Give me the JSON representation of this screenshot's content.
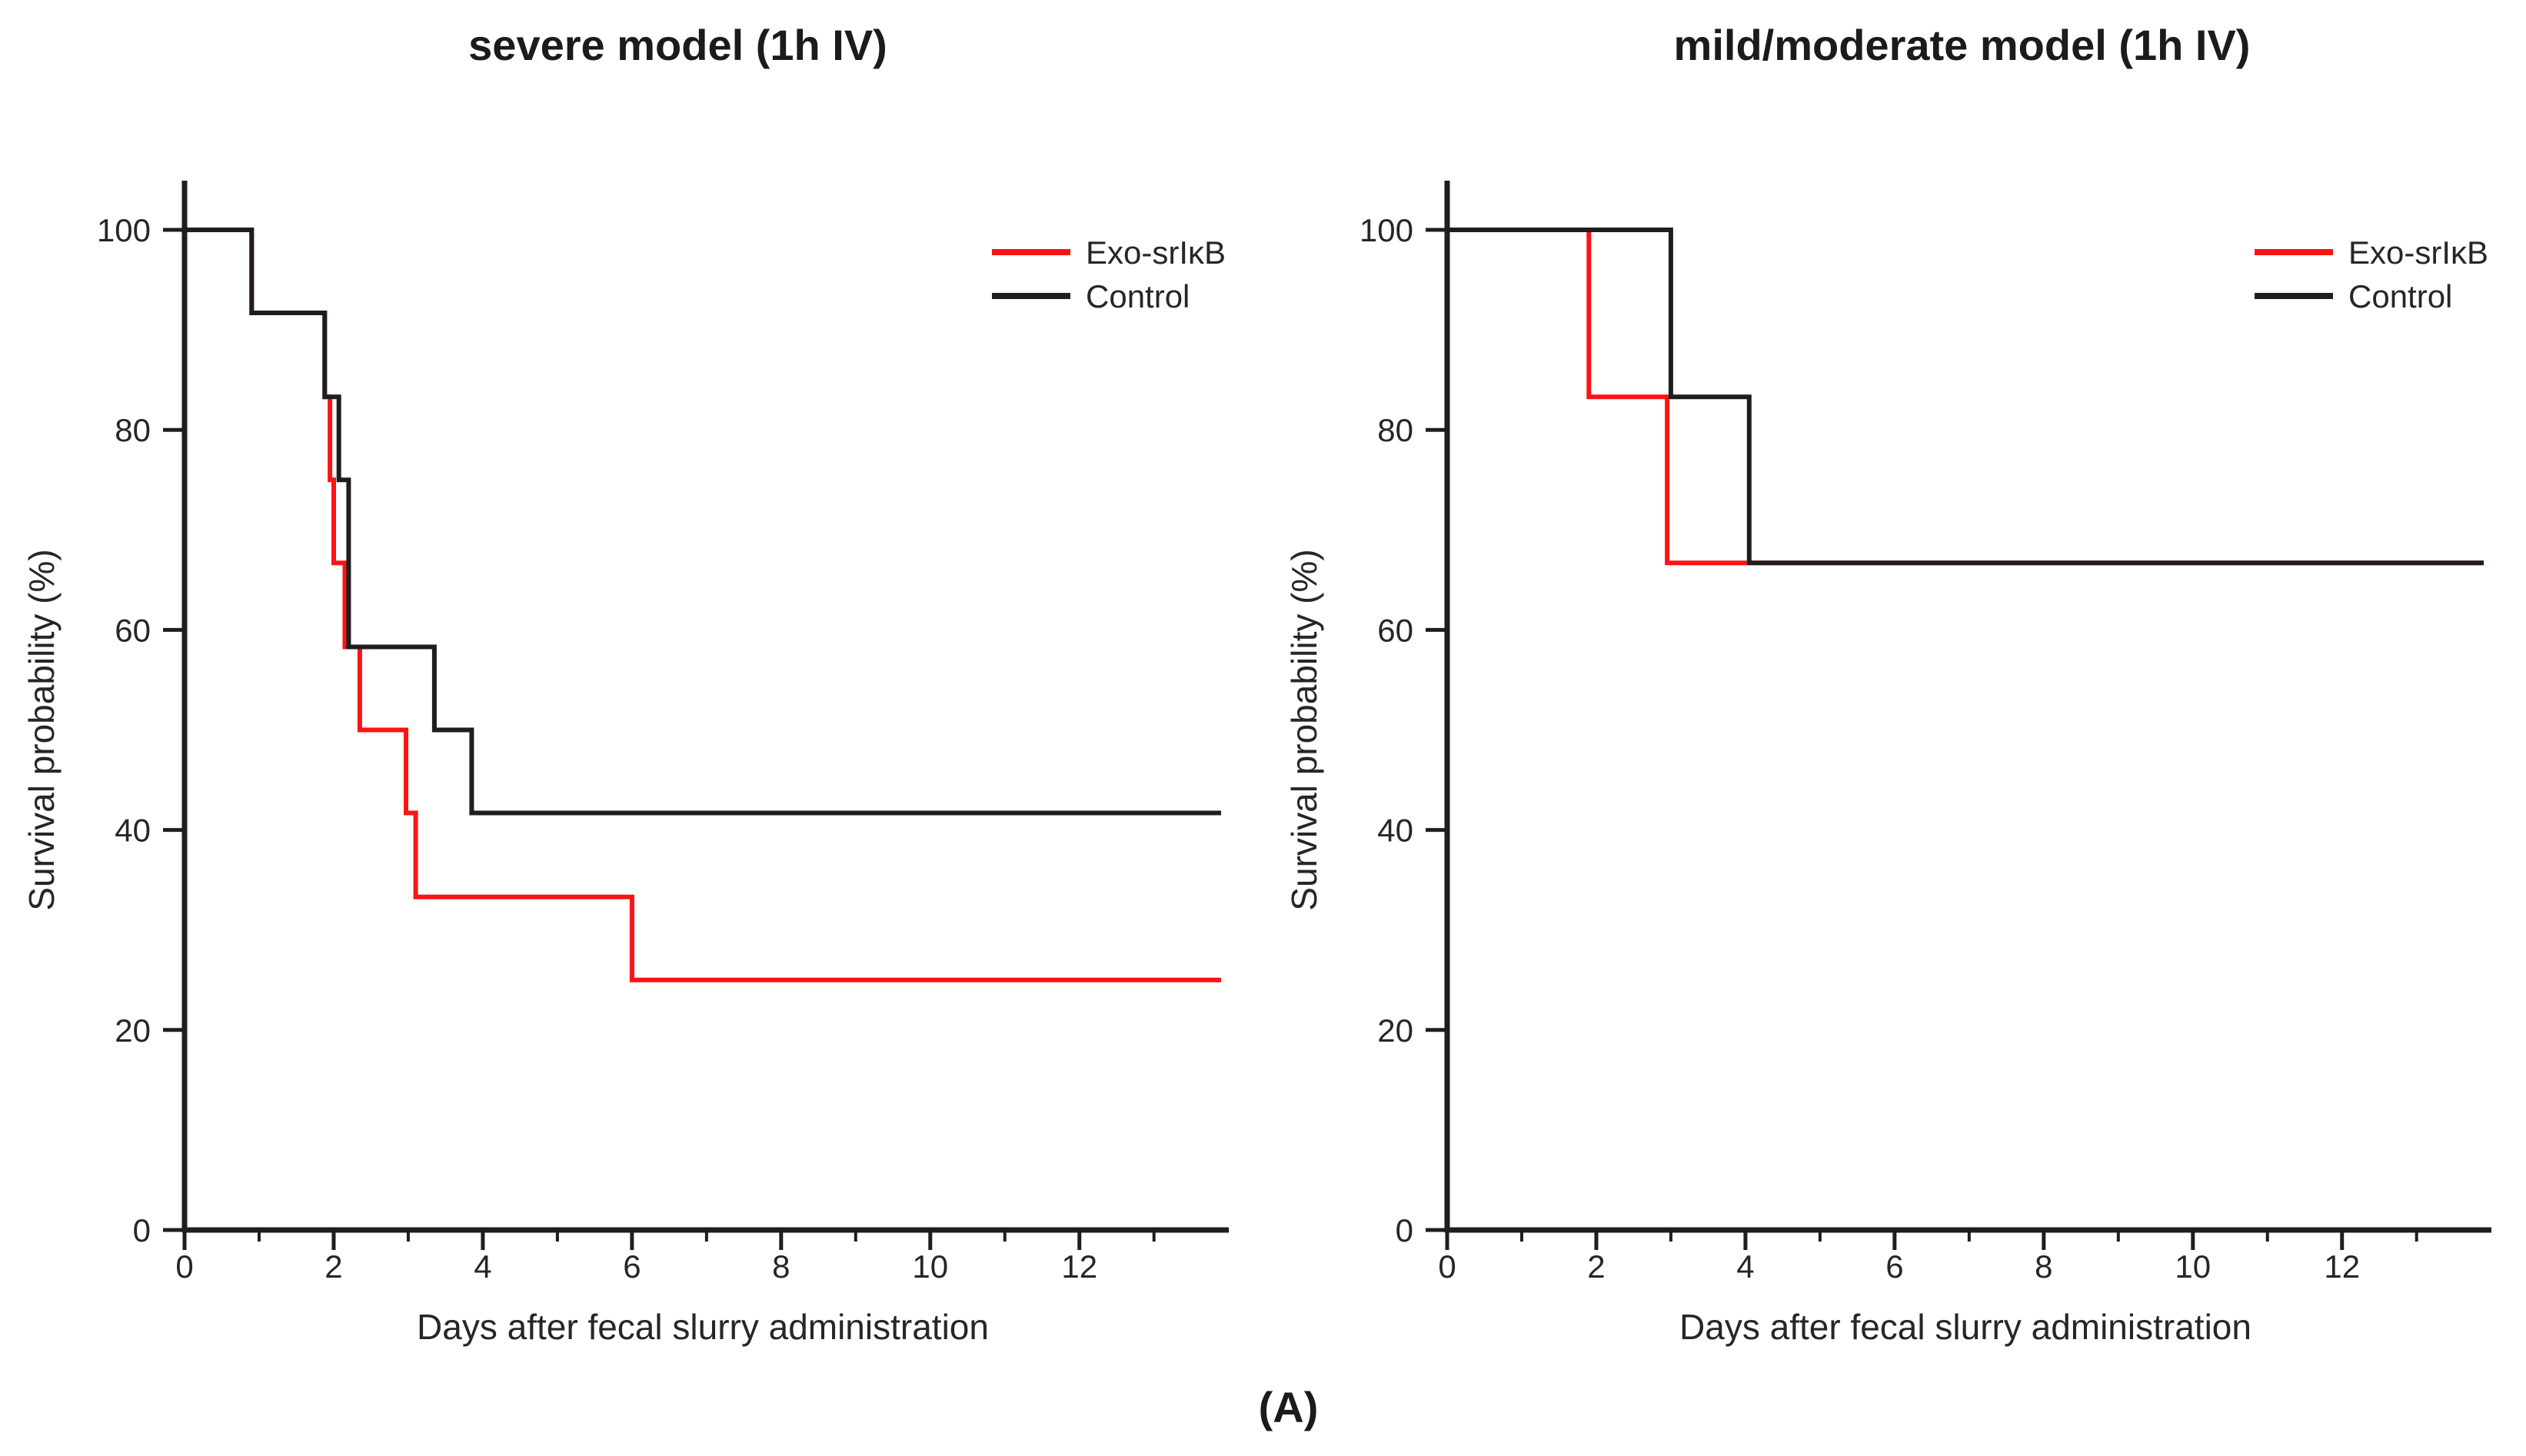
{
  "figure": {
    "panel_label": "(A)",
    "background": "#ffffff"
  },
  "colors": {
    "exo": "#fb1414",
    "control": "#1e1e1e",
    "axis": "#1e1e1e",
    "text": "#262626"
  },
  "chart_data": [
    {
      "type": "line",
      "variant": "kaplan-meier-step",
      "title": "severe model (1h IV)",
      "xlabel": "Days after fecal slurry administration",
      "ylabel": "Survival probability (%)",
      "xlim": [
        0,
        13.9
      ],
      "ylim": [
        0,
        100
      ],
      "xticks_major": [
        0,
        2,
        4,
        6,
        8,
        10,
        12
      ],
      "xticks_minor": [
        1,
        3,
        5,
        7,
        9,
        11,
        13
      ],
      "yticks": [
        0,
        20,
        40,
        60,
        80,
        100
      ],
      "grid": false,
      "legend_position": "top-right",
      "legend": [
        {
          "id": "exo-srikb",
          "name": "Exo-srIκB",
          "color": "exo"
        },
        {
          "id": "control",
          "name": "Control",
          "color": "control"
        }
      ],
      "series": [
        {
          "id": "exo-srikb",
          "name": "Exo-srIκB",
          "color": "exo",
          "final_percent": 25,
          "steps": [
            [
              0,
              100
            ],
            [
              0.9,
              100
            ],
            [
              0.9,
              91.7
            ],
            [
              1.88,
              91.7
            ],
            [
              1.88,
              83.3
            ],
            [
              1.95,
              83.3
            ],
            [
              1.95,
              75
            ],
            [
              2.0,
              75
            ],
            [
              2.0,
              66.7
            ],
            [
              2.15,
              66.7
            ],
            [
              2.15,
              58.3
            ],
            [
              2.35,
              58.3
            ],
            [
              2.35,
              50
            ],
            [
              2.97,
              50
            ],
            [
              2.97,
              41.7
            ],
            [
              3.1,
              41.7
            ],
            [
              3.1,
              33.3
            ],
            [
              6,
              33.3
            ],
            [
              6,
              25
            ],
            [
              13.9,
              25
            ]
          ]
        },
        {
          "id": "control",
          "name": "Control",
          "color": "control",
          "final_percent": 41.7,
          "steps": [
            [
              0,
              100
            ],
            [
              0.9,
              100
            ],
            [
              0.9,
              91.7
            ],
            [
              1.88,
              91.7
            ],
            [
              1.88,
              83.3
            ],
            [
              2.07,
              83.3
            ],
            [
              2.07,
              75
            ],
            [
              2.2,
              75
            ],
            [
              2.2,
              58.3
            ],
            [
              3.35,
              58.3
            ],
            [
              3.35,
              50
            ],
            [
              3.85,
              50
            ],
            [
              3.85,
              41.7
            ],
            [
              13.9,
              41.7
            ]
          ]
        }
      ]
    },
    {
      "type": "line",
      "variant": "kaplan-meier-step",
      "title": "mild/moderate model (1h IV)",
      "xlabel": "Days after fecal slurry administration",
      "ylabel": "Survival probability (%)",
      "xlim": [
        0,
        13.9
      ],
      "ylim": [
        0,
        100
      ],
      "xticks_major": [
        0,
        2,
        4,
        6,
        8,
        10,
        12
      ],
      "xticks_minor": [
        1,
        3,
        5,
        7,
        9,
        11,
        13
      ],
      "yticks": [
        0,
        20,
        40,
        60,
        80,
        100
      ],
      "grid": false,
      "legend_position": "top-right",
      "legend": [
        {
          "id": "exo-srikb",
          "name": "Exo-srIκB",
          "color": "exo"
        },
        {
          "id": "control",
          "name": "Control",
          "color": "control"
        }
      ],
      "series": [
        {
          "id": "exo-srikb",
          "name": "Exo-srIκB",
          "color": "exo",
          "final_percent": 66.7,
          "steps": [
            [
              0,
              100
            ],
            [
              1.9,
              100
            ],
            [
              1.9,
              83.3
            ],
            [
              2.95,
              83.3
            ],
            [
              2.95,
              66.7
            ],
            [
              13.9,
              66.7
            ]
          ]
        },
        {
          "id": "control",
          "name": "Control",
          "color": "control",
          "final_percent": 66.7,
          "steps": [
            [
              0,
              100
            ],
            [
              3.0,
              100
            ],
            [
              3.0,
              83.3
            ],
            [
              4.05,
              83.3
            ],
            [
              4.05,
              66.7
            ],
            [
              13.9,
              66.7
            ]
          ]
        }
      ]
    }
  ]
}
